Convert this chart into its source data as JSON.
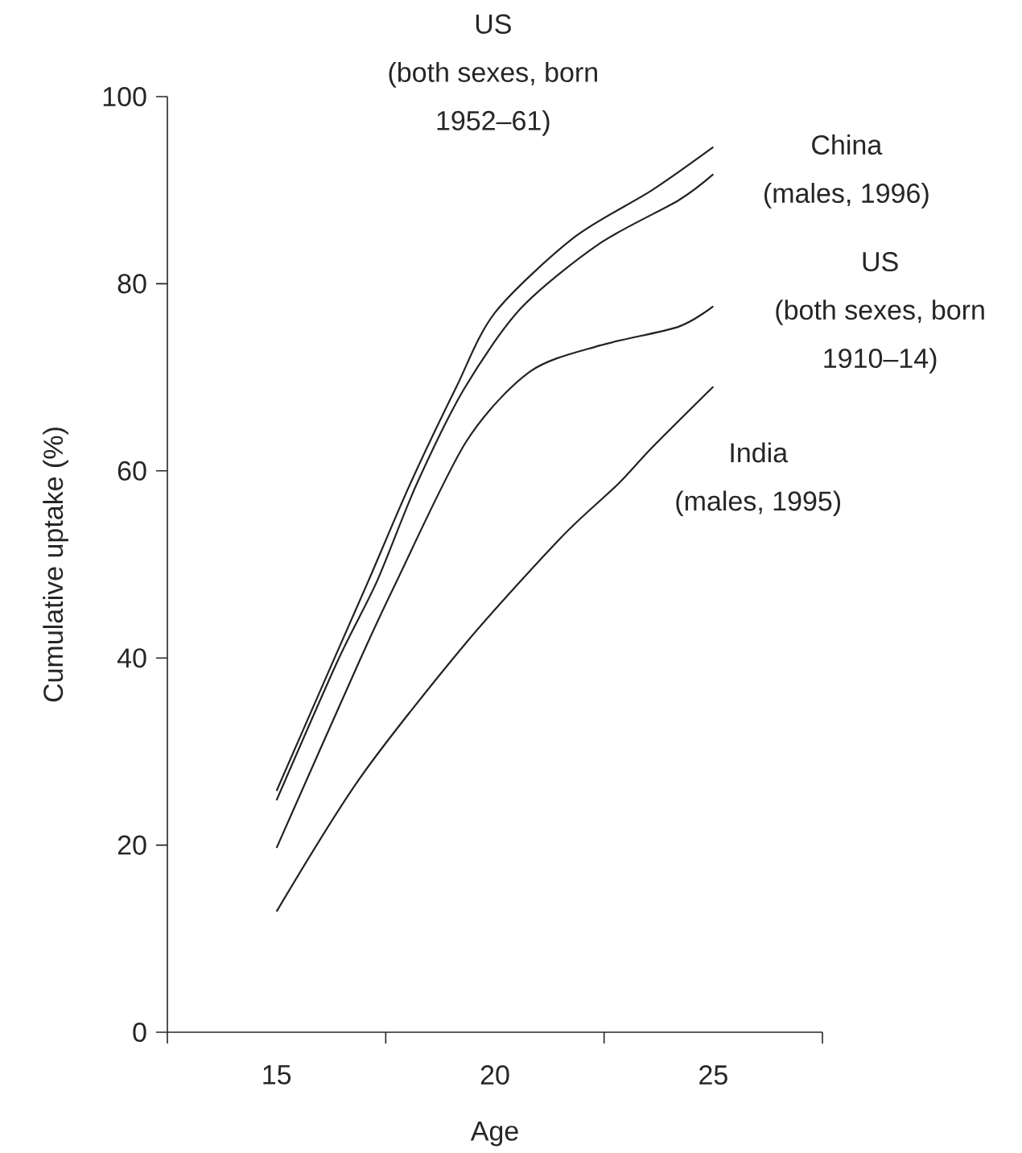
{
  "chart_data": {
    "type": "line",
    "xlabel": "Age",
    "ylabel": "Cumulative uptake (%)",
    "xlim": [
      12.5,
      27.5
    ],
    "ylim": [
      0,
      100
    ],
    "xticks": [
      {
        "value": 12.5,
        "label": null
      },
      15,
      {
        "value": 17.5,
        "label": null
      },
      20,
      {
        "value": 22.5,
        "label": null
      },
      25,
      {
        "value": 27.5,
        "label": null
      }
    ],
    "yticks": [
      0,
      20,
      40,
      60,
      80,
      100
    ],
    "line_style": "solid",
    "series": [
      {
        "name": "US (both sexes, born 1952–61)",
        "color": "#222222",
        "x": [
          15,
          16.3,
          17.1,
          18.05,
          19.1,
          20,
          21.8,
          23.6,
          25
        ],
        "values": [
          25.8,
          39.7,
          48.2,
          58.5,
          68.8,
          76.9,
          84.9,
          90,
          94.6
        ]
      },
      {
        "name": "China (males, 1996)",
        "color": "#222222",
        "x": [
          15,
          16.4,
          17.3,
          18.2,
          19.3,
          20.6,
          22.4,
          24.2,
          25
        ],
        "values": [
          24.8,
          39.7,
          48.2,
          58.5,
          68.8,
          77.4,
          84.3,
          88.9,
          91.7
        ]
      },
      {
        "name": "US (both sexes, born 1910–14)",
        "color": "#222222",
        "x": [
          15,
          16.9,
          17.75,
          19.34,
          20.8,
          22.4,
          24.2,
          25
        ],
        "values": [
          19.7,
          39.7,
          48.2,
          63.1,
          70.6,
          73.4,
          75.4,
          77.6
        ]
      },
      {
        "name": "India (males, 1995)",
        "color": "#222222",
        "x": [
          15,
          16.9,
          19.3,
          21.5,
          22.8,
          23.6,
          25
        ],
        "values": [
          12.9,
          27.1,
          41.4,
          52.8,
          58.5,
          62.5,
          69
        ]
      }
    ]
  }
}
